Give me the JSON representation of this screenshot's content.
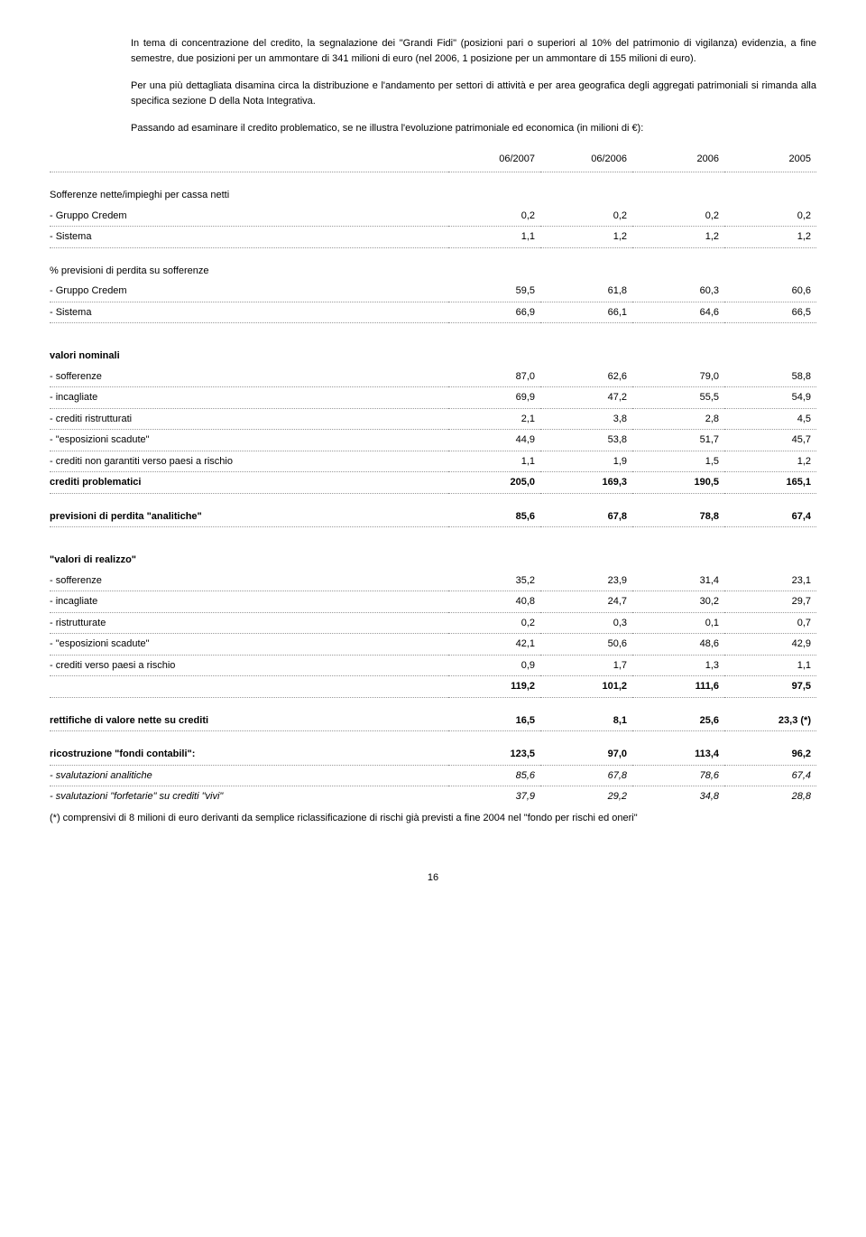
{
  "paragraphs": {
    "p1": "In tema di concentrazione del credito, la segnalazione dei \"Grandi Fidi\" (posizioni pari o superiori al 10% del patrimonio di vigilanza) evidenzia, a fine semestre, due posizioni per un ammontare di 341 milioni di euro (nel 2006, 1 posizione per un ammontare di 155 milioni di euro).",
    "p2": "Per una più dettagliata disamina circa la distribuzione e l'andamento per settori di attività e per area geografica degli aggregati patrimoniali si rimanda alla specifica sezione D della Nota Integrativa.",
    "p3": "Passando ad esaminare il credito problematico, se ne illustra l'evoluzione patrimoniale ed economica (in milioni di €):"
  },
  "columns": {
    "c1": "06/2007",
    "c2": "06/2006",
    "c3": "2006",
    "c4": "2005"
  },
  "sections": {
    "sofferenze_netti": "Sofferenze nette/impieghi per cassa netti",
    "previsioni_perdita": "% previsioni di perdita su sofferenze",
    "valori_nominali": "valori nominali",
    "crediti_problematici": "crediti problematici",
    "previsioni_analitiche": "previsioni di perdita \"analitiche\"",
    "valori_realizzo": "\"valori di realizzo\"",
    "rettifiche": "rettifiche di valore nette su crediti",
    "ricostruzione": "ricostruzione \"fondi contabili\":"
  },
  "rows": {
    "gruppo_credem1": {
      "label": "- Gruppo Credem",
      "c1": "0,2",
      "c2": "0,2",
      "c3": "0,2",
      "c4": "0,2"
    },
    "sistema1": {
      "label": "- Sistema",
      "c1": "1,1",
      "c2": "1,2",
      "c3": "1,2",
      "c4": "1,2"
    },
    "gruppo_credem2": {
      "label": "- Gruppo Credem",
      "c1": "59,5",
      "c2": "61,8",
      "c3": "60,3",
      "c4": "60,6"
    },
    "sistema2": {
      "label": "- Sistema",
      "c1": "66,9",
      "c2": "66,1",
      "c3": "64,6",
      "c4": "66,5"
    },
    "sofferenze": {
      "label": "- sofferenze",
      "c1": "87,0",
      "c2": "62,6",
      "c3": "79,0",
      "c4": "58,8"
    },
    "incagliate": {
      "label": "- incagliate",
      "c1": "69,9",
      "c2": "47,2",
      "c3": "55,5",
      "c4": "54,9"
    },
    "crediti_ristr": {
      "label": "- crediti ristrutturati",
      "c1": "2,1",
      "c2": "3,8",
      "c3": "2,8",
      "c4": "4,5"
    },
    "esposizioni_sc": {
      "label": "- \"esposizioni scadute\"",
      "c1": "44,9",
      "c2": "53,8",
      "c3": "51,7",
      "c4": "45,7"
    },
    "crediti_non_gar": {
      "label": "- crediti non garantiti verso paesi a rischio",
      "c1": "1,1",
      "c2": "1,9",
      "c3": "1,5",
      "c4": "1,2"
    },
    "crediti_probl": {
      "c1": "205,0",
      "c2": "169,3",
      "c3": "190,5",
      "c4": "165,1"
    },
    "prev_analitiche": {
      "c1": "85,6",
      "c2": "67,8",
      "c3": "78,8",
      "c4": "67,4"
    },
    "sofferenze2": {
      "label": "- sofferenze",
      "c1": "35,2",
      "c2": "23,9",
      "c3": "31,4",
      "c4": "23,1"
    },
    "incagliate2": {
      "label": "- incagliate",
      "c1": "40,8",
      "c2": "24,7",
      "c3": "30,2",
      "c4": "29,7"
    },
    "ristrutturate": {
      "label": "- ristrutturate",
      "c1": "0,2",
      "c2": "0,3",
      "c3": "0,1",
      "c4": "0,7"
    },
    "esposizioni_sc2": {
      "label": "- \"esposizioni scadute\"",
      "c1": "42,1",
      "c2": "50,6",
      "c3": "48,6",
      "c4": "42,9"
    },
    "crediti_paesi": {
      "label": "- crediti verso paesi a rischio",
      "c1": "0,9",
      "c2": "1,7",
      "c3": "1,3",
      "c4": "1,1"
    },
    "totale_realizzo": {
      "c1": "119,2",
      "c2": "101,2",
      "c3": "111,6",
      "c4": "97,5"
    },
    "rettifiche": {
      "c1": "16,5",
      "c2": "8,1",
      "c3": "25,6",
      "c4": "23,3 (*)"
    },
    "ricostruzione": {
      "c1": "123,5",
      "c2": "97,0",
      "c3": "113,4",
      "c4": "96,2"
    },
    "sval_analitiche": {
      "label": " - svalutazioni analitiche",
      "c1": "85,6",
      "c2": "67,8",
      "c3": "78,6",
      "c4": "67,4"
    },
    "sval_forfetarie": {
      "label": " - svalutazioni \"forfetarie\" su crediti \"vivi\"",
      "c1": "37,9",
      "c2": "29,2",
      "c3": "34,8",
      "c4": "28,8"
    }
  },
  "footnote": "(*) comprensivi di 8 milioni di euro derivanti da semplice riclassificazione di rischi già previsti a fine 2004 nel \"fondo per rischi ed oneri\"",
  "page_number": "16"
}
